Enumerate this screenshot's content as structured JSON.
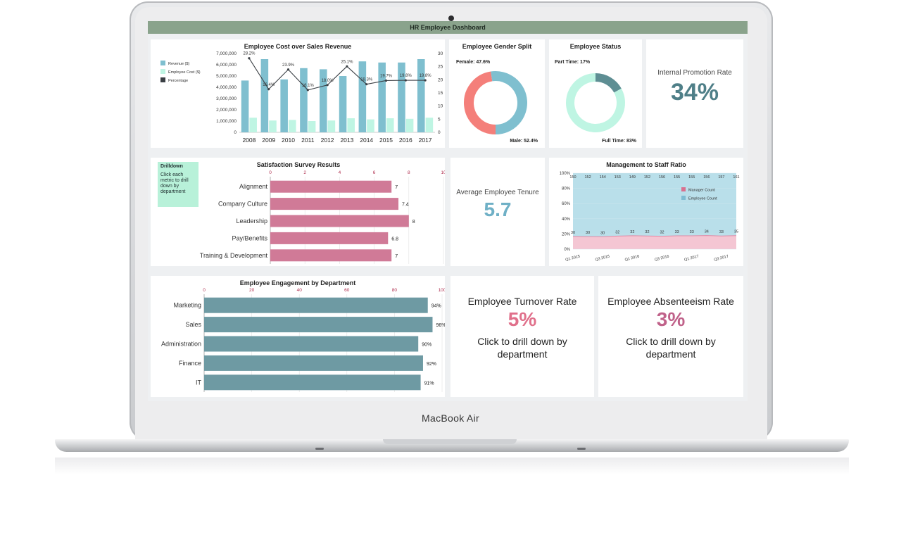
{
  "device": {
    "brand": "MacBook Air"
  },
  "dashboard": {
    "title": "HR Employee Dashboard"
  },
  "cost_chart": {
    "title": "Employee Cost over Sales Revenue",
    "legend": [
      "Revenue ($)",
      "Employee Cost ($)",
      "Percentage"
    ],
    "y_ticks": [
      "7,000,000",
      "6,000,000",
      "5,000,000",
      "4,000,000",
      "3,000,000",
      "2,000,000",
      "1,000,000",
      "0"
    ],
    "y2_ticks": [
      "30",
      "25",
      "20",
      "15",
      "10",
      "5",
      "0"
    ],
    "pct_labels": [
      "28.2%",
      "16.4%",
      "23.9%",
      "16.1%",
      "18.0%",
      "25.1%",
      "18.3%",
      "19.7%",
      "19.8%",
      "19.8%"
    ]
  },
  "gender": {
    "title": "Employee Gender Split",
    "female_label": "Female: 47.6%",
    "male_label": "Male: 52.4%"
  },
  "status": {
    "title": "Employee Status",
    "part_label": "Part Time: 17%",
    "full_label": "Full Time: 83%"
  },
  "promotion": {
    "label": "Internal Promotion Rate",
    "value": "34%"
  },
  "drilldown": {
    "title": "Drilldown",
    "text": "Click each metric to drill down by department"
  },
  "survey": {
    "title": "Satisfaction Survey Results",
    "x_ticks": [
      "0",
      "2",
      "4",
      "6",
      "8",
      "10"
    ]
  },
  "tenure": {
    "label": "Average Employee Tenure",
    "value": "5.7"
  },
  "ratio": {
    "title": "Management to Staff Ratio",
    "y_ticks": [
      "100%",
      "80%",
      "60%",
      "40%",
      "20%",
      "0%"
    ],
    "legend": [
      "Manager Count",
      "Employee Count"
    ]
  },
  "engagement": {
    "title": "Employee Engagement by Department",
    "x_ticks": [
      "0",
      "20",
      "40",
      "60",
      "80",
      "100"
    ]
  },
  "turnover": {
    "label": "Employee Turnover Rate",
    "value": "5%",
    "sub": "Click to drill down by department"
  },
  "absenteeism": {
    "label": "Employee Absenteeism Rate",
    "value": "3%",
    "sub": "Click to drill down by department"
  },
  "colors": {
    "teal": "#7fbfcf",
    "mint": "#bff5e3",
    "pink": "#d07a97",
    "slate": "#6e9aa3",
    "coral": "#f47f7a"
  },
  "chart_data": [
    {
      "type": "bar",
      "title": "Employee Cost over Sales Revenue",
      "categories": [
        "2008",
        "2009",
        "2010",
        "2011",
        "2012",
        "2013",
        "2014",
        "2015",
        "2016",
        "2017"
      ],
      "series": [
        {
          "name": "Revenue ($)",
          "values": [
            4600000,
            6500000,
            4700000,
            5700000,
            5600000,
            5000000,
            6300000,
            6200000,
            6200000,
            6500000
          ]
        },
        {
          "name": "Employee Cost ($)",
          "values": [
            1300000,
            1050000,
            1100000,
            1000000,
            1050000,
            1250000,
            1150000,
            1250000,
            1200000,
            1300000
          ]
        },
        {
          "name": "Percentage",
          "values": [
            28.2,
            16.4,
            23.9,
            16.1,
            18.0,
            25.1,
            18.3,
            19.7,
            19.8,
            19.8
          ]
        }
      ],
      "ylim": [
        0,
        7000000
      ],
      "y2lim": [
        0,
        30
      ]
    },
    {
      "type": "pie",
      "title": "Employee Gender Split",
      "categories": [
        "Female",
        "Male"
      ],
      "values": [
        47.6,
        52.4
      ]
    },
    {
      "type": "pie",
      "title": "Employee Status",
      "categories": [
        "Part Time",
        "Full Time"
      ],
      "values": [
        17,
        83
      ]
    },
    {
      "type": "bar",
      "title": "Satisfaction Survey Results",
      "categories": [
        "Alignment",
        "Company Culture",
        "Leadership",
        "Pay/Benefits",
        "Training & Development"
      ],
      "values": [
        7,
        7.4,
        8,
        6.8,
        7
      ],
      "xlim": [
        0,
        10
      ]
    },
    {
      "type": "area",
      "title": "Management to Staff Ratio",
      "categories": [
        "Q1 2015",
        "Q2 2015",
        "Q3 2015",
        "Q4 2015",
        "Q1 2016",
        "Q2 2016",
        "Q3 2016",
        "Q4 2016",
        "Q1 2017",
        "Q2 2017",
        "Q3 2017",
        "Q4 2017"
      ],
      "x_tick_labels": [
        "Q1 2015",
        "Q3 2015",
        "Q1 2016",
        "Q3 2016",
        "Q1 2017",
        "Q3 2017"
      ],
      "series": [
        {
          "name": "Manager Count",
          "values": [
            30,
            30,
            30,
            32,
            32,
            32,
            32,
            33,
            33,
            34,
            33,
            35
          ]
        },
        {
          "name": "Employee Count",
          "values": [
            150,
            152,
            154,
            153,
            149,
            152,
            156,
            155,
            155,
            156,
            157,
            161
          ]
        }
      ]
    },
    {
      "type": "bar",
      "title": "Employee Engagement by Department",
      "categories": [
        "Marketing",
        "Sales",
        "Administration",
        "Finance",
        "IT"
      ],
      "values": [
        94,
        96,
        90,
        92,
        91
      ],
      "xlim": [
        0,
        100
      ]
    }
  ]
}
